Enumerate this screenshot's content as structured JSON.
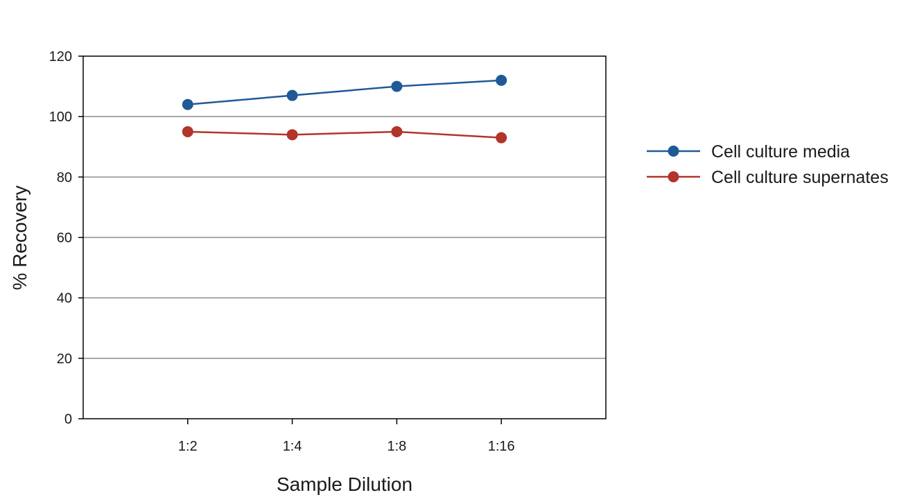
{
  "chart_data": {
    "type": "line",
    "title": "",
    "xlabel": "Sample Dilution",
    "ylabel": "% Recovery",
    "categories": [
      "1:2",
      "1:4",
      "1:8",
      "1:16"
    ],
    "ylim": [
      0,
      120
    ],
    "yticks": [
      0,
      20,
      40,
      60,
      80,
      100,
      120
    ],
    "grid": "horizontal",
    "legend_position": "right",
    "series": [
      {
        "name": "Cell culture media",
        "values": [
          104,
          107,
          110,
          112
        ],
        "color": "#1f5a96"
      },
      {
        "name": "Cell culture supernates",
        "values": [
          95,
          94,
          95,
          93
        ],
        "color": "#b3342a"
      }
    ]
  }
}
